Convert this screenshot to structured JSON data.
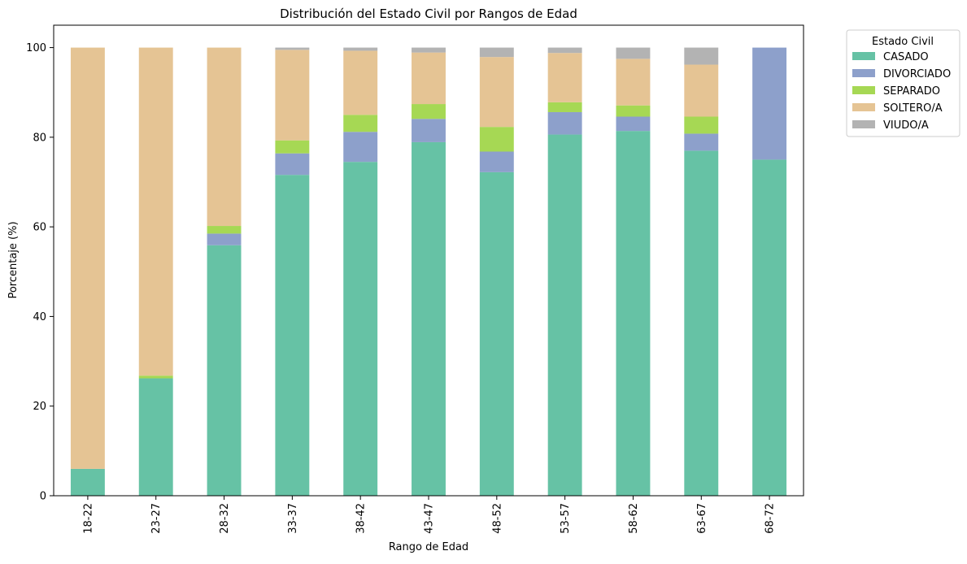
{
  "chart_data": {
    "type": "bar",
    "stacked": true,
    "title": "Distribución del Estado Civil por Rangos de Edad",
    "xlabel": "Rango de Edad",
    "ylabel": "Porcentaje (%)",
    "ylim": [
      0,
      105
    ],
    "yticks": [
      0,
      20,
      40,
      60,
      80,
      100
    ],
    "grid": false,
    "legend": {
      "title": "Estado Civil",
      "placement": "outside-top-right"
    },
    "categories": [
      "18-22",
      "23-27",
      "28-32",
      "33-37",
      "38-42",
      "43-47",
      "48-52",
      "53-57",
      "58-62",
      "63-67",
      "68-72"
    ],
    "series": [
      {
        "name": "CASADO",
        "color": "#66c2a5",
        "values": [
          6,
          26.2,
          55.9,
          71.6,
          74.5,
          78.9,
          72.2,
          80.6,
          81.4,
          77.0,
          75.0
        ]
      },
      {
        "name": "DIVORCIADO",
        "color": "#8da0cb",
        "values": [
          0,
          0,
          2.6,
          4.8,
          6.7,
          5.2,
          4.6,
          5.0,
          3.2,
          3.8,
          25.0
        ]
      },
      {
        "name": "SEPARADO",
        "color": "#a6d854",
        "values": [
          0,
          0.6,
          1.7,
          2.9,
          3.8,
          3.3,
          5.5,
          2.2,
          2.5,
          3.8,
          0
        ]
      },
      {
        "name": "SOLTERO/A",
        "color": "#e5c494",
        "values": [
          94,
          73.2,
          39.8,
          20.2,
          14.3,
          11.5,
          15.6,
          11.0,
          10.4,
          11.6,
          0
        ]
      },
      {
        "name": "VIUDO/A",
        "color": "#b3b3b3",
        "values": [
          0,
          0,
          0,
          0.5,
          0.7,
          1.1,
          2.1,
          1.2,
          2.5,
          3.8,
          0
        ]
      }
    ]
  }
}
